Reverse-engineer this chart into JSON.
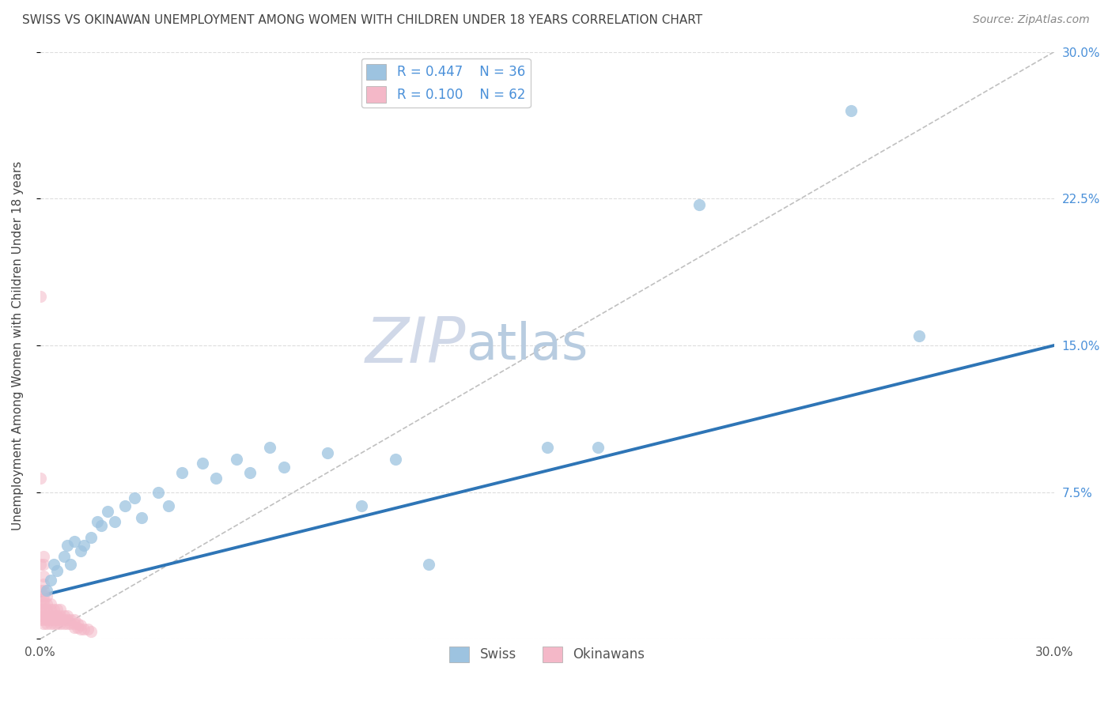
{
  "title": "SWISS VS OKINAWAN UNEMPLOYMENT AMONG WOMEN WITH CHILDREN UNDER 18 YEARS CORRELATION CHART",
  "source": "Source: ZipAtlas.com",
  "ylabel": "Unemployment Among Women with Children Under 18 years",
  "xlim": [
    0,
    0.3
  ],
  "ylim": [
    0,
    0.3
  ],
  "right_ytick_labels": [
    "",
    "7.5%",
    "15.0%",
    "22.5%",
    "30.0%"
  ],
  "legend_swiss_r": "R = 0.447",
  "legend_swiss_n": "N = 36",
  "legend_okin_r": "R = 0.100",
  "legend_okin_n": "N = 62",
  "legend_label_swiss": "Swiss",
  "legend_label_okin": "Okinawans",
  "watermark_zip": "ZIP",
  "watermark_atlas": "atlas",
  "blue_color": "#9dc3e0",
  "pink_color": "#f4b8c8",
  "blue_line_color": "#2e75b6",
  "pink_line_color": "#e07890",
  "diag_color": "#c0c0c0",
  "swiss_dots_x": [
    0.002,
    0.003,
    0.004,
    0.005,
    0.007,
    0.008,
    0.009,
    0.01,
    0.012,
    0.013,
    0.015,
    0.017,
    0.018,
    0.02,
    0.022,
    0.025,
    0.028,
    0.03,
    0.035,
    0.038,
    0.042,
    0.048,
    0.052,
    0.058,
    0.062,
    0.068,
    0.072,
    0.085,
    0.095,
    0.105,
    0.115,
    0.15,
    0.165,
    0.195,
    0.24,
    0.26
  ],
  "swiss_dots_y": [
    0.025,
    0.03,
    0.038,
    0.035,
    0.042,
    0.048,
    0.038,
    0.05,
    0.045,
    0.048,
    0.052,
    0.06,
    0.058,
    0.065,
    0.06,
    0.068,
    0.072,
    0.062,
    0.075,
    0.068,
    0.085,
    0.09,
    0.082,
    0.092,
    0.085,
    0.098,
    0.088,
    0.095,
    0.068,
    0.092,
    0.038,
    0.098,
    0.098,
    0.222,
    0.27,
    0.155
  ],
  "okin_dots_x": [
    0.0,
    0.0,
    0.0,
    0.0,
    0.0,
    0.0,
    0.0,
    0.001,
    0.001,
    0.001,
    0.001,
    0.001,
    0.001,
    0.001,
    0.001,
    0.001,
    0.001,
    0.001,
    0.001,
    0.002,
    0.002,
    0.002,
    0.002,
    0.002,
    0.002,
    0.003,
    0.003,
    0.003,
    0.003,
    0.003,
    0.004,
    0.004,
    0.004,
    0.004,
    0.005,
    0.005,
    0.005,
    0.005,
    0.006,
    0.006,
    0.006,
    0.006,
    0.007,
    0.007,
    0.007,
    0.008,
    0.008,
    0.008,
    0.009,
    0.009,
    0.01,
    0.01,
    0.01,
    0.011,
    0.011,
    0.012,
    0.012,
    0.013,
    0.014,
    0.015,
    0.0,
    0.0
  ],
  "okin_dots_y": [
    0.01,
    0.012,
    0.015,
    0.018,
    0.022,
    0.025,
    0.038,
    0.008,
    0.01,
    0.012,
    0.015,
    0.018,
    0.02,
    0.022,
    0.025,
    0.028,
    0.032,
    0.038,
    0.042,
    0.008,
    0.01,
    0.012,
    0.015,
    0.018,
    0.022,
    0.008,
    0.01,
    0.012,
    0.015,
    0.018,
    0.008,
    0.01,
    0.012,
    0.015,
    0.008,
    0.01,
    0.012,
    0.015,
    0.008,
    0.01,
    0.012,
    0.015,
    0.008,
    0.01,
    0.012,
    0.008,
    0.01,
    0.012,
    0.008,
    0.01,
    0.006,
    0.008,
    0.01,
    0.006,
    0.008,
    0.005,
    0.007,
    0.005,
    0.005,
    0.004,
    0.082,
    0.175
  ],
  "swiss_trend_x": [
    0.0,
    0.3
  ],
  "swiss_trend_y": [
    0.022,
    0.15
  ],
  "diag_line_x": [
    0.0,
    0.3
  ],
  "diag_line_y": [
    0.0,
    0.3
  ]
}
